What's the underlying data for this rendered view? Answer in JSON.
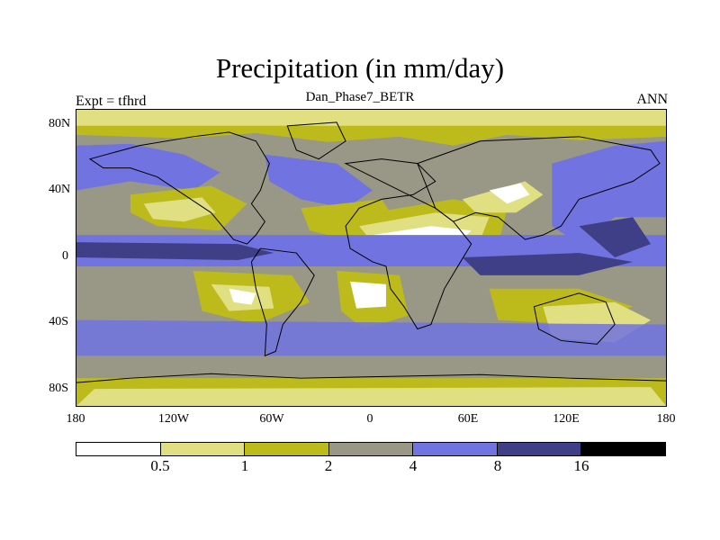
{
  "title": "Precipitation (in mm/day)",
  "subtitle": "Dan_Phase7_BETR",
  "left_label": "Expt = tfhrd",
  "right_label": "ANN",
  "map": {
    "projection": "cylindrical-equidistant",
    "lon_range": [
      -180,
      180
    ],
    "lat_range": [
      -90,
      90
    ],
    "x_ticks": [
      "180",
      "120W",
      "60W",
      "0",
      "60E",
      "120E",
      "180"
    ],
    "y_ticks": [
      "80N",
      "40N",
      "0",
      "40S",
      "80S"
    ],
    "coastlines": true
  },
  "colorbar": {
    "levels": [
      "0.5",
      "1",
      "2",
      "4",
      "8",
      "16"
    ],
    "colors": [
      "#ffffff",
      "#e0df82",
      "#bdbb1c",
      "#999886",
      "#7073e0",
      "#3f3f87",
      "#000000"
    ]
  }
}
